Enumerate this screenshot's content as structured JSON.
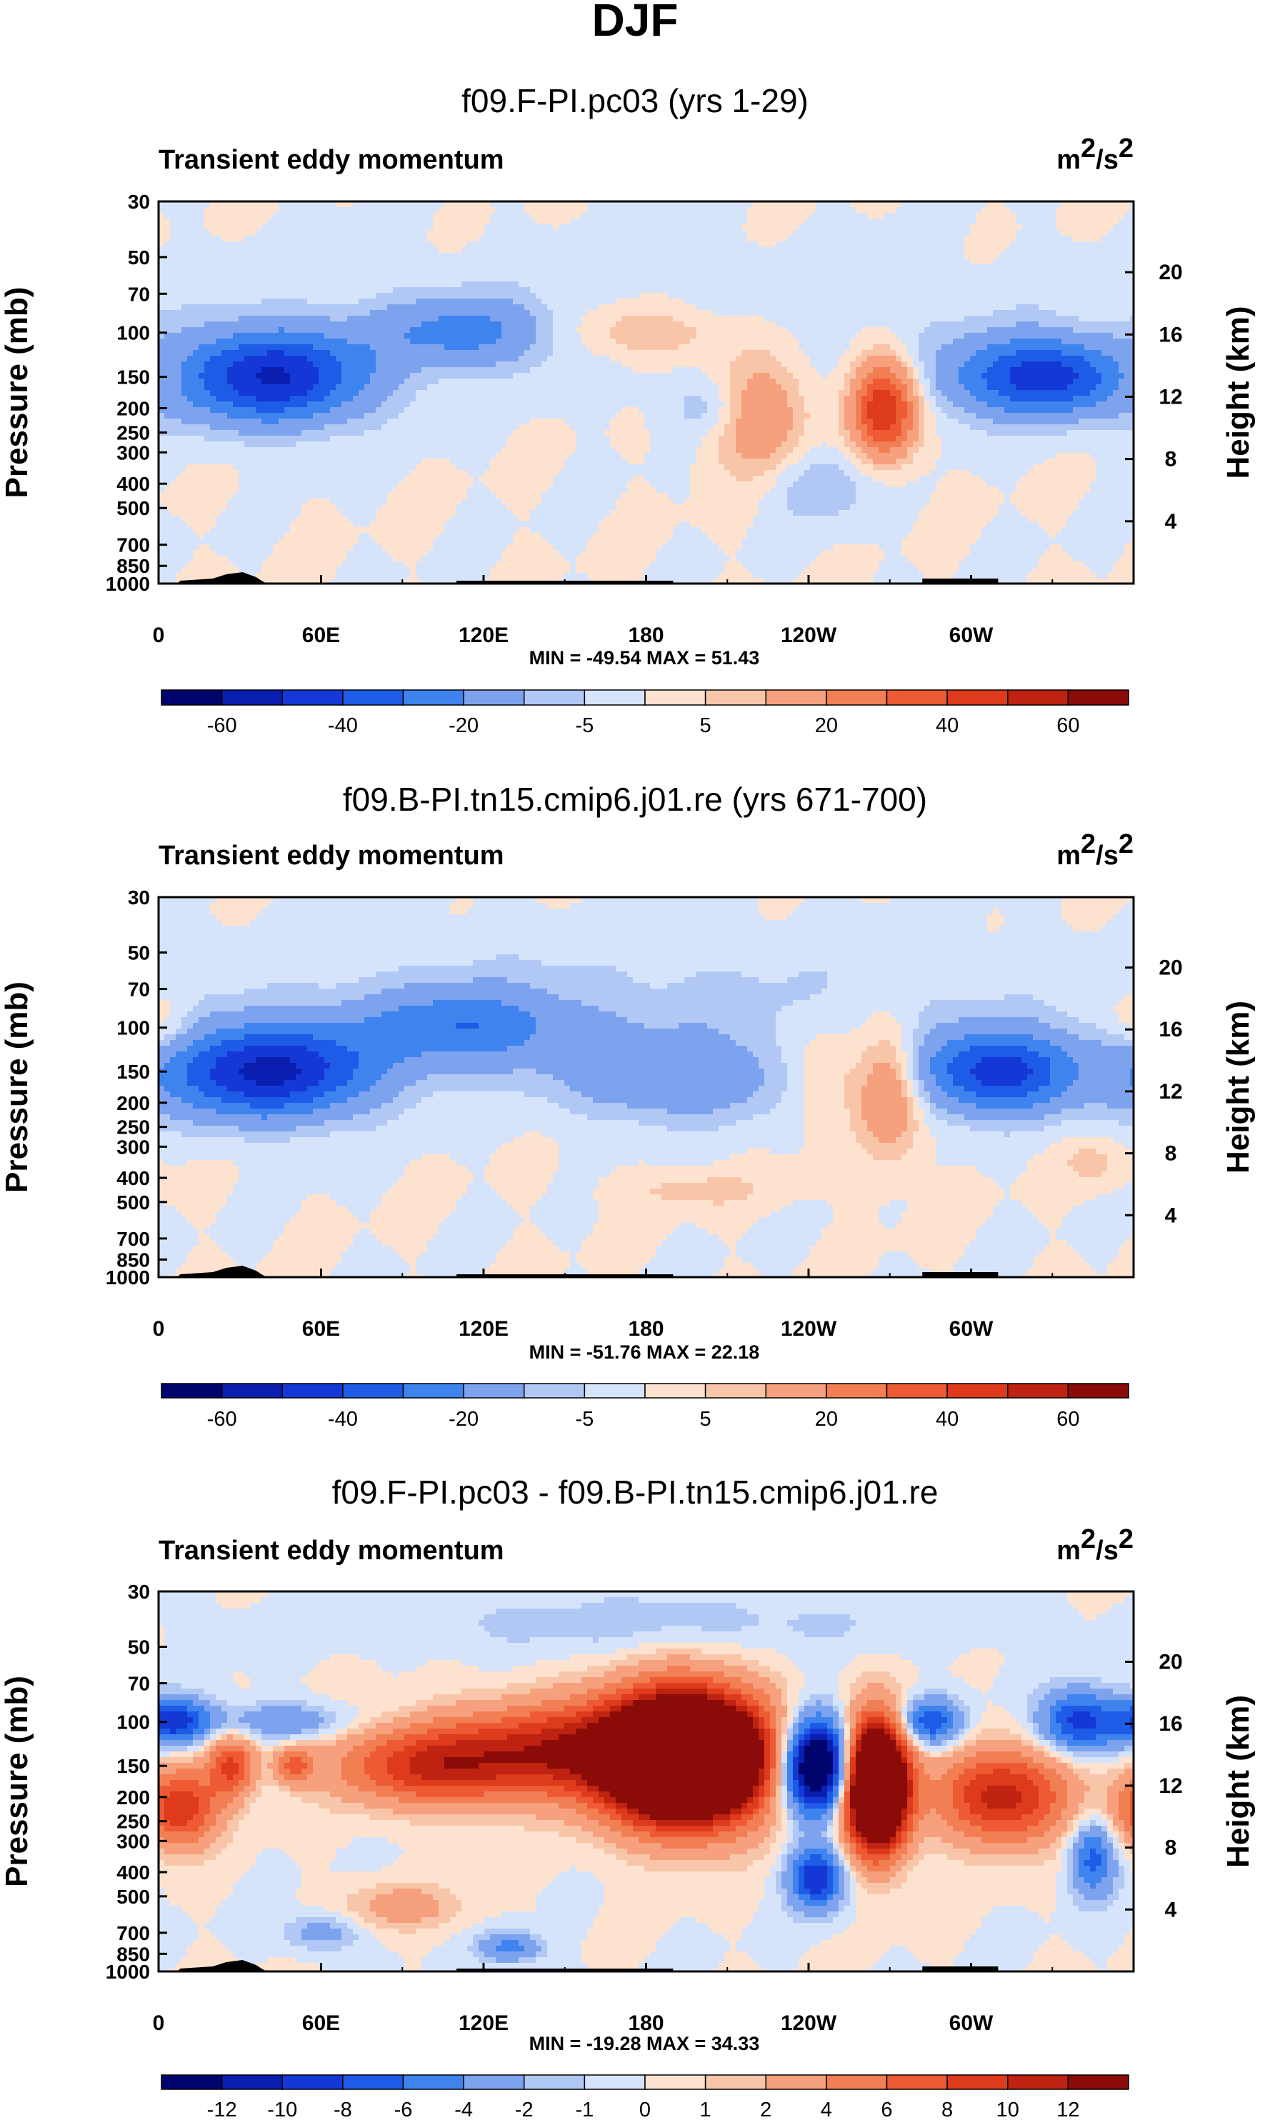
{
  "figure_title": "DJF",
  "chart_data": [
    {
      "type": "heatmap",
      "title": "f09.F-PI.pc03 (yrs 1-29)",
      "subtitle_left": "Transient eddy momentum",
      "units": "m²/s²",
      "units_base": "m",
      "units_sup1": "2",
      "units_mid": "/s",
      "units_sup2": "2",
      "ylabel": "Pressure (mb)",
      "ylabel_right": "Height (km)",
      "stats": "MIN = -49.54  MAX =  51.43",
      "min": -49.54,
      "max": 51.43,
      "x_ticks": [
        "0",
        "60E",
        "120E",
        "180",
        "120W",
        "60W"
      ],
      "x_tick_values": [
        0,
        60,
        120,
        180,
        240,
        300
      ],
      "xlim": [
        0,
        360
      ],
      "y_ticks": [
        "30",
        "50",
        "70",
        "100",
        "150",
        "200",
        "250",
        "300",
        "400",
        "500",
        "700",
        "850",
        "1000"
      ],
      "y_tick_values": [
        30,
        50,
        70,
        100,
        150,
        200,
        250,
        300,
        400,
        500,
        700,
        850,
        1000
      ],
      "y_right_ticks": [
        "20",
        "16",
        "12",
        "8",
        "4"
      ],
      "y_right_values": [
        20,
        16,
        12,
        8,
        4
      ],
      "ylim": [
        1000,
        30
      ],
      "colorbar_labels": [
        "-60",
        "-40",
        "-20",
        "-5",
        "5",
        "20",
        "40",
        "60"
      ],
      "levels": [
        -70,
        -60,
        -50,
        -40,
        -30,
        -20,
        -10,
        -5,
        0,
        5,
        10,
        20,
        30,
        40,
        50,
        60,
        70
      ],
      "features": [
        {
          "lon": 42,
          "p": 150,
          "value": -49.5,
          "lon_width": 25,
          "p_width": 0.3
        },
        {
          "lon": 113,
          "p": 100,
          "value": -22,
          "lon_width": 22,
          "p_width": 0.22
        },
        {
          "lon": 243,
          "p": 400,
          "value": -10,
          "lon_width": 15,
          "p_width": 0.25
        },
        {
          "lon": 205,
          "p": 200,
          "value": -9,
          "lon_width": 12,
          "p_width": 0.18
        },
        {
          "lon": 322,
          "p": 150,
          "value": -40,
          "lon_width": 22,
          "p_width": 0.26
        },
        {
          "lon": 335,
          "p": 150,
          "value": -8,
          "lon_width": 12,
          "p_width": 0.2
        },
        {
          "lon": 180,
          "p": 100,
          "value": 12,
          "lon_width": 22,
          "p_width": 0.18
        },
        {
          "lon": 222,
          "p": 220,
          "value": 20,
          "lon_width": 12,
          "p_width": 0.38
        },
        {
          "lon": 268,
          "p": 200,
          "value": 51.4,
          "lon_width": 8,
          "p_width": 0.3
        },
        {
          "lon": 2,
          "p": 150,
          "value": 8,
          "lon_width": 7,
          "p_width": 0.18
        },
        {
          "lon": 180,
          "p": 90,
          "value": -3,
          "lon_width": 160,
          "p_width": 0.45
        }
      ]
    },
    {
      "type": "heatmap",
      "title": "f09.B-PI.tn15.cmip6.j01.re (yrs 671-700)",
      "subtitle_left": "Transient eddy momentum",
      "units": "m²/s²",
      "units_base": "m",
      "units_sup1": "2",
      "units_mid": "/s",
      "units_sup2": "2",
      "ylabel": "Pressure (mb)",
      "ylabel_right": "Height (km)",
      "stats": "MIN = -51.76  MAX =  22.18",
      "min": -51.76,
      "max": 22.18,
      "x_ticks": [
        "0",
        "60E",
        "120E",
        "180",
        "120W",
        "60W"
      ],
      "x_tick_values": [
        0,
        60,
        120,
        180,
        240,
        300
      ],
      "xlim": [
        0,
        360
      ],
      "y_ticks": [
        "30",
        "50",
        "70",
        "100",
        "150",
        "200",
        "250",
        "300",
        "400",
        "500",
        "700",
        "850",
        "1000"
      ],
      "y_tick_values": [
        30,
        50,
        70,
        100,
        150,
        200,
        250,
        300,
        400,
        500,
        700,
        850,
        1000
      ],
      "y_right_ticks": [
        "20",
        "16",
        "12",
        "8",
        "4"
      ],
      "y_right_values": [
        20,
        16,
        12,
        8,
        4
      ],
      "ylim": [
        1000,
        30
      ],
      "colorbar_labels": [
        "-60",
        "-40",
        "-20",
        "-5",
        "5",
        "20",
        "40",
        "60"
      ],
      "levels": [
        -70,
        -60,
        -50,
        -40,
        -30,
        -20,
        -10,
        -5,
        0,
        5,
        10,
        20,
        30,
        40,
        50,
        60,
        70
      ],
      "features": [
        {
          "lon": 40,
          "p": 150,
          "value": -51.8,
          "lon_width": 28,
          "p_width": 0.3
        },
        {
          "lon": 113,
          "p": 100,
          "value": -25,
          "lon_width": 26,
          "p_width": 0.24
        },
        {
          "lon": 190,
          "p": 160,
          "value": -18,
          "lon_width": 30,
          "p_width": 0.28
        },
        {
          "lon": 310,
          "p": 150,
          "value": -45,
          "lon_width": 20,
          "p_width": 0.26
        },
        {
          "lon": 170,
          "p": 80,
          "value": -6,
          "lon_width": 120,
          "p_width": 0.45
        },
        {
          "lon": 270,
          "p": 180,
          "value": 22,
          "lon_width": 8,
          "p_width": 0.4
        },
        {
          "lon": 245,
          "p": 150,
          "value": 10,
          "lon_width": 10,
          "p_width": 0.3
        },
        {
          "lon": 2,
          "p": 100,
          "value": 10,
          "lon_width": 8,
          "p_width": 0.22
        },
        {
          "lon": 200,
          "p": 450,
          "value": 7,
          "lon_width": 20,
          "p_width": 0.12
        },
        {
          "lon": 345,
          "p": 350,
          "value": 7,
          "lon_width": 8,
          "p_width": 0.15
        }
      ]
    },
    {
      "type": "heatmap",
      "title": "f09.F-PI.pc03 - f09.B-PI.tn15.cmip6.j01.re",
      "subtitle_left": "Transient eddy momentum",
      "units": "m²/s²",
      "units_base": "m",
      "units_sup1": "2",
      "units_mid": "/s",
      "units_sup2": "2",
      "ylabel": "Pressure (mb)",
      "ylabel_right": "Height (km)",
      "stats": "MIN = -19.28  MAX =  34.33",
      "min": -19.28,
      "max": 34.33,
      "x_ticks": [
        "0",
        "60E",
        "120E",
        "180",
        "120W",
        "60W"
      ],
      "x_tick_values": [
        0,
        60,
        120,
        180,
        240,
        300
      ],
      "xlim": [
        0,
        360
      ],
      "y_ticks": [
        "30",
        "50",
        "70",
        "100",
        "150",
        "200",
        "250",
        "300",
        "400",
        "500",
        "700",
        "850",
        "1000"
      ],
      "y_tick_values": [
        30,
        50,
        70,
        100,
        150,
        200,
        250,
        300,
        400,
        500,
        700,
        850,
        1000
      ],
      "y_right_ticks": [
        "20",
        "16",
        "12",
        "8",
        "4"
      ],
      "y_right_values": [
        20,
        16,
        12,
        8,
        4
      ],
      "ylim": [
        1000,
        30
      ],
      "colorbar_labels": [
        "-12",
        "-10",
        "-8",
        "-6",
        "-4",
        "-2",
        "-1",
        "0",
        "1",
        "2",
        "4",
        "6",
        "8",
        "10",
        "12"
      ],
      "levels": [
        -14,
        -12,
        -10,
        -8,
        -6,
        -4,
        -2,
        -1,
        0,
        1,
        2,
        4,
        6,
        8,
        10,
        12,
        14
      ],
      "features": [
        {
          "lon": 6,
          "p": 100,
          "value": -9,
          "lon_width": 9,
          "p_width": 0.15
        },
        {
          "lon": 45,
          "p": 100,
          "value": -4,
          "lon_width": 18,
          "p_width": 0.12
        },
        {
          "lon": 8,
          "p": 220,
          "value": 10,
          "lon_width": 10,
          "p_width": 0.25
        },
        {
          "lon": 27,
          "p": 150,
          "value": 8,
          "lon_width": 6,
          "p_width": 0.2
        },
        {
          "lon": 50,
          "p": 150,
          "value": 6,
          "lon_width": 5,
          "p_width": 0.12
        },
        {
          "lon": 100,
          "p": 150,
          "value": 9,
          "lon_width": 25,
          "p_width": 0.25
        },
        {
          "lon": 150,
          "p": 130,
          "value": 10,
          "lon_width": 30,
          "p_width": 0.3
        },
        {
          "lon": 195,
          "p": 140,
          "value": 34.3,
          "lon_width": 20,
          "p_width": 0.4
        },
        {
          "lon": 243,
          "p": 150,
          "value": -19.3,
          "lon_width": 9,
          "p_width": 0.3
        },
        {
          "lon": 243,
          "p": 420,
          "value": -10,
          "lon_width": 7,
          "p_width": 0.2
        },
        {
          "lon": 265,
          "p": 180,
          "value": 30,
          "lon_width": 8,
          "p_width": 0.4
        },
        {
          "lon": 285,
          "p": 100,
          "value": -8,
          "lon_width": 8,
          "p_width": 0.15
        },
        {
          "lon": 312,
          "p": 200,
          "value": 11,
          "lon_width": 17,
          "p_width": 0.3
        },
        {
          "lon": 340,
          "p": 100,
          "value": -9,
          "lon_width": 10,
          "p_width": 0.2
        },
        {
          "lon": 345,
          "p": 350,
          "value": -7,
          "lon_width": 6,
          "p_width": 0.25
        },
        {
          "lon": 130,
          "p": 800,
          "value": -5,
          "lon_width": 8,
          "p_width": 0.1
        },
        {
          "lon": 60,
          "p": 700,
          "value": -3,
          "lon_width": 10,
          "p_width": 0.12
        },
        {
          "lon": 90,
          "p": 550,
          "value": 3,
          "lon_width": 15,
          "p_width": 0.15
        },
        {
          "lon": 180,
          "p": 40,
          "value": -1.5,
          "lon_width": 80,
          "p_width": 0.2
        }
      ]
    }
  ],
  "colors": {
    "palette": [
      "#00056d",
      "#0a1fb0",
      "#1438d6",
      "#1e5be6",
      "#3f83ef",
      "#7ea3ee",
      "#b1c8f5",
      "#d6e4fb",
      "#fde2cf",
      "#f9c5a9",
      "#f6a07e",
      "#f27f54",
      "#ed5a33",
      "#de3a1c",
      "#be2210",
      "#8a0b08"
    ],
    "topography": "#000000"
  }
}
